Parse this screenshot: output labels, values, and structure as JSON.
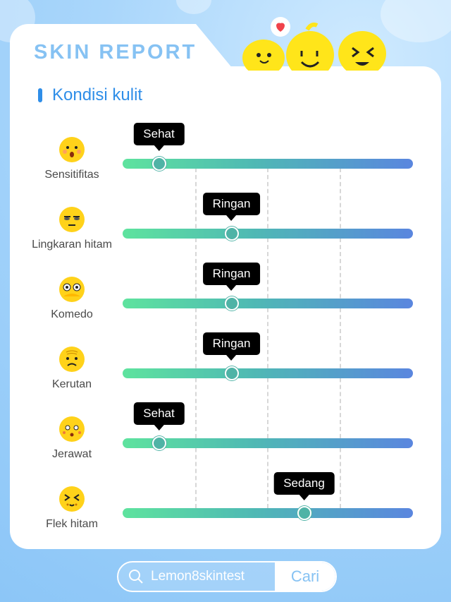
{
  "header": {
    "title": "SKIN REPORT"
  },
  "section": {
    "title": "Kondisi kulit"
  },
  "colors": {
    "accent": "#2f8ee8",
    "title": "#86c2f3",
    "tooltip": "#000000"
  },
  "metrics": [
    {
      "label": "Sensitifitas",
      "status": "Sehat",
      "level": 0.125,
      "icon": "surprised-face-icon"
    },
    {
      "label": "Lingkaran hitam",
      "status": "Ringan",
      "level": 0.375,
      "icon": "tired-face-icon"
    },
    {
      "label": "Komedo",
      "status": "Ringan",
      "level": 0.375,
      "icon": "covering-face-icon"
    },
    {
      "label": "Kerutan",
      "status": "Ringan",
      "level": 0.375,
      "icon": "wrinkled-face-icon"
    },
    {
      "label": "Jerawat",
      "status": "Sehat",
      "level": 0.125,
      "icon": "acne-face-icon"
    },
    {
      "label": "Flek hitam",
      "status": "Sedang",
      "level": 0.625,
      "icon": "squinting-face-icon"
    }
  ],
  "search": {
    "query": "Lemon8skintest",
    "button_label": "Cari"
  }
}
